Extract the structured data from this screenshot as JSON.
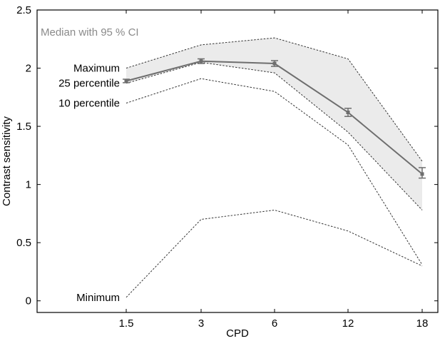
{
  "chart_data": {
    "type": "line",
    "title": "",
    "xlabel": "CPD",
    "ylabel": "Contrast sensitivity",
    "categories": [
      "1.5",
      "3",
      "6",
      "12",
      "18"
    ],
    "ylim": [
      -0.1,
      2.5
    ],
    "yticks": [
      "0",
      "0.5",
      "1",
      "1.5",
      "2",
      "2.5"
    ],
    "grid": false,
    "legend": {
      "text": "Median with 95 % CI",
      "placement": "top-left"
    },
    "median": {
      "values": [
        1.89,
        2.06,
        2.04,
        1.62,
        1.09
      ],
      "ci_low": [
        1.875,
        2.04,
        2.015,
        1.585,
        1.055
      ],
      "ci_high": [
        1.905,
        2.08,
        2.065,
        1.655,
        1.145
      ]
    },
    "percentile_series": [
      {
        "name": "Maximum",
        "values": [
          2.0,
          2.2,
          2.26,
          2.08,
          1.2
        ]
      },
      {
        "name": "25 percentile",
        "values": [
          1.87,
          2.05,
          1.96,
          1.45,
          0.78
        ]
      },
      {
        "name": "10 percentile",
        "values": [
          1.7,
          1.91,
          1.8,
          1.34,
          0.31
        ]
      },
      {
        "name": "Minimum",
        "values": [
          0.03,
          0.7,
          0.78,
          0.6,
          0.3
        ]
      }
    ],
    "colors": {
      "band": "#ebebeb",
      "median": "#6e6e6e",
      "dashed": "#333333",
      "legend_text": "#8a8a8a"
    }
  }
}
